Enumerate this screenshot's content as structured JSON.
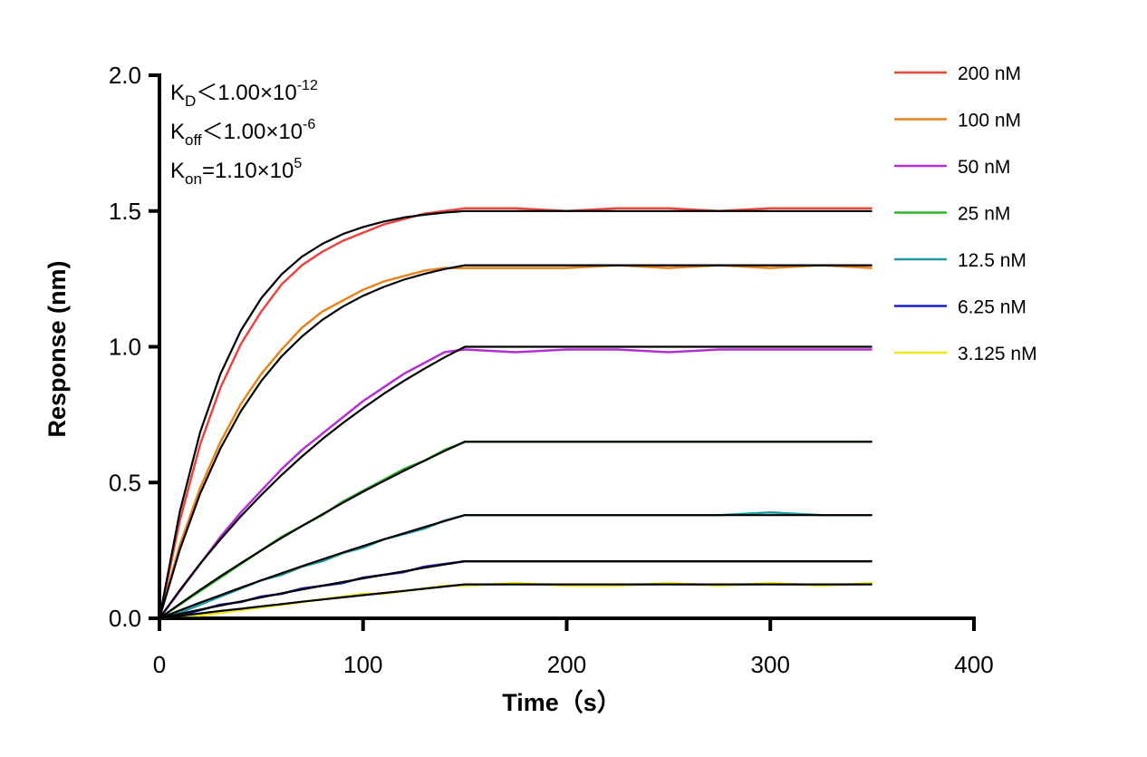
{
  "chart_data": {
    "type": "line",
    "x_label": "Time（s）",
    "y_label": "Response (nm)",
    "annotations": [
      {
        "base": "K",
        "sub": "D",
        "text": "＜1.00×10",
        "sup": "-12"
      },
      {
        "base": "K",
        "sub": "off",
        "text": "＜1.00×10",
        "sup": "-6"
      },
      {
        "base": "K",
        "sub": "on",
        "text": "=1.10×10",
        "sup": "5"
      }
    ],
    "xlim": [
      0,
      400
    ],
    "xticks": [
      0,
      100,
      200,
      300,
      400
    ],
    "ylim": [
      0,
      2
    ],
    "yticks": [
      {
        "value": 0,
        "label": "0.0"
      },
      0.5,
      {
        "value": 1,
        "label": "1.0"
      },
      1.5,
      {
        "value": 2,
        "label": "2.0"
      }
    ],
    "x": [
      0,
      10,
      20,
      30,
      40,
      50,
      60,
      70,
      80,
      90,
      100,
      110,
      120,
      130,
      140,
      150,
      175,
      200,
      225,
      250,
      275,
      300,
      325,
      350
    ],
    "series": [
      {
        "name": "200 nM",
        "color": "#e8473f",
        "values": [
          0,
          0.36,
          0.64,
          0.85,
          1.01,
          1.13,
          1.23,
          1.3,
          1.35,
          1.39,
          1.42,
          1.45,
          1.47,
          1.49,
          1.5,
          1.51,
          1.51,
          1.5,
          1.51,
          1.51,
          1.5,
          1.51,
          1.51,
          1.51
        ]
      },
      {
        "name": "100 nM",
        "color": "#e8841e",
        "values": [
          0,
          0.27,
          0.48,
          0.65,
          0.79,
          0.9,
          0.99,
          1.07,
          1.13,
          1.17,
          1.21,
          1.24,
          1.26,
          1.28,
          1.29,
          1.29,
          1.29,
          1.29,
          1.3,
          1.29,
          1.3,
          1.29,
          1.3,
          1.29
        ]
      },
      {
        "name": "50 nM",
        "color": "#b52fd6",
        "values": [
          0,
          0.1,
          0.2,
          0.3,
          0.39,
          0.47,
          0.55,
          0.62,
          0.68,
          0.74,
          0.8,
          0.85,
          0.9,
          0.94,
          0.98,
          0.99,
          0.98,
          0.99,
          0.99,
          0.98,
          0.99,
          0.99,
          0.99,
          0.99
        ]
      },
      {
        "name": "25 nM",
        "color": "#2fb52a",
        "values": [
          0,
          0.05,
          0.1,
          0.15,
          0.2,
          0.25,
          0.3,
          0.34,
          0.38,
          0.43,
          0.47,
          0.51,
          0.55,
          0.58,
          0.62,
          0.65,
          0.65,
          0.65,
          0.65,
          0.65,
          0.65,
          0.65,
          0.65,
          0.65
        ]
      },
      {
        "name": "12.5 nM",
        "color": "#1f9aa5",
        "values": [
          0,
          0.02,
          0.05,
          0.08,
          0.11,
          0.14,
          0.16,
          0.19,
          0.21,
          0.24,
          0.26,
          0.29,
          0.31,
          0.33,
          0.36,
          0.38,
          0.38,
          0.38,
          0.38,
          0.38,
          0.38,
          0.39,
          0.38,
          0.38
        ]
      },
      {
        "name": "6.25 nM",
        "color": "#1c1cc0",
        "values": [
          0,
          0.01,
          0.03,
          0.05,
          0.06,
          0.08,
          0.09,
          0.11,
          0.12,
          0.13,
          0.15,
          0.16,
          0.17,
          0.19,
          0.2,
          0.21,
          0.21,
          0.21,
          0.21,
          0.21,
          0.21,
          0.21,
          0.21,
          0.21
        ]
      },
      {
        "name": "3.125 nM",
        "color": "#f0e81c",
        "values": [
          0,
          0.01,
          0.01,
          0.02,
          0.03,
          0.04,
          0.05,
          0.06,
          0.07,
          0.08,
          0.09,
          0.09,
          0.1,
          0.11,
          0.12,
          0.12,
          0.13,
          0.12,
          0.12,
          0.13,
          0.12,
          0.13,
          0.12,
          0.13
        ]
      }
    ],
    "fit_color": "#000000",
    "fits": [
      {
        "values": [
          0,
          0.393,
          0.685,
          0.9,
          1.06,
          1.179,
          1.267,
          1.332,
          1.379,
          1.415,
          1.441,
          1.461,
          1.476,
          1.486,
          1.494,
          1.5,
          1.5,
          1.5,
          1.5,
          1.5,
          1.5,
          1.5,
          1.5,
          1.5
        ]
      },
      {
        "values": [
          0,
          0.253,
          0.459,
          0.626,
          0.763,
          0.874,
          0.965,
          1.038,
          1.099,
          1.148,
          1.188,
          1.22,
          1.247,
          1.268,
          1.286,
          1.3,
          1.3,
          1.3,
          1.3,
          1.3,
          1.3,
          1.3,
          1.3,
          1.3
        ]
      },
      {
        "values": [
          0,
          0.104,
          0.201,
          0.291,
          0.376,
          0.454,
          0.528,
          0.596,
          0.66,
          0.719,
          0.774,
          0.826,
          0.874,
          0.919,
          0.961,
          1.0,
          1.0,
          1.0,
          1.0,
          1.0,
          1.0,
          1.0,
          1.0,
          1.0
        ]
      },
      {
        "values": [
          0,
          0.053,
          0.105,
          0.155,
          0.203,
          0.25,
          0.296,
          0.34,
          0.383,
          0.425,
          0.466,
          0.505,
          0.543,
          0.58,
          0.616,
          0.65,
          0.65,
          0.65,
          0.65,
          0.65,
          0.65,
          0.65,
          0.65,
          0.65
        ]
      },
      {
        "values": [
          0,
          0.029,
          0.058,
          0.085,
          0.113,
          0.14,
          0.166,
          0.192,
          0.217,
          0.242,
          0.266,
          0.29,
          0.313,
          0.336,
          0.358,
          0.38,
          0.38,
          0.38,
          0.38,
          0.38,
          0.38,
          0.38,
          0.38,
          0.38
        ]
      },
      {
        "values": [
          0,
          0.016,
          0.032,
          0.047,
          0.062,
          0.077,
          0.092,
          0.106,
          0.12,
          0.134,
          0.147,
          0.16,
          0.173,
          0.186,
          0.198,
          0.21,
          0.21,
          0.21,
          0.21,
          0.21,
          0.21,
          0.21,
          0.21,
          0.21
        ]
      },
      {
        "values": [
          0,
          0.009,
          0.018,
          0.027,
          0.035,
          0.044,
          0.052,
          0.061,
          0.069,
          0.077,
          0.085,
          0.093,
          0.101,
          0.109,
          0.117,
          0.125,
          0.125,
          0.125,
          0.125,
          0.125,
          0.125,
          0.125,
          0.125,
          0.125
        ]
      }
    ],
    "legend": "top-right"
  }
}
